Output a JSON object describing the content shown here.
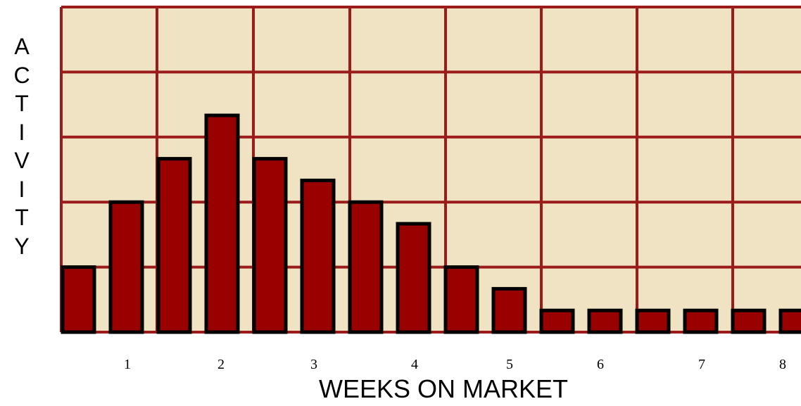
{
  "chart_data": {
    "type": "bar",
    "title": "",
    "xlabel": "WEEKS ON MARKET",
    "ylabel": "ACTIVITY",
    "x_tick_labels": [
      "1",
      "2",
      "3",
      "4",
      "5",
      "6",
      "7",
      "8"
    ],
    "values": [
      3,
      6,
      8,
      10,
      8,
      7,
      6,
      5,
      3,
      2,
      1,
      1,
      1,
      1,
      1,
      1
    ],
    "ylim": [
      0,
      15
    ],
    "grid": true,
    "colors": {
      "plot_background": "#EFE3C3",
      "grid": "#9B1B1B",
      "bar_fill": "#990000",
      "bar_outline": "#000000"
    }
  }
}
